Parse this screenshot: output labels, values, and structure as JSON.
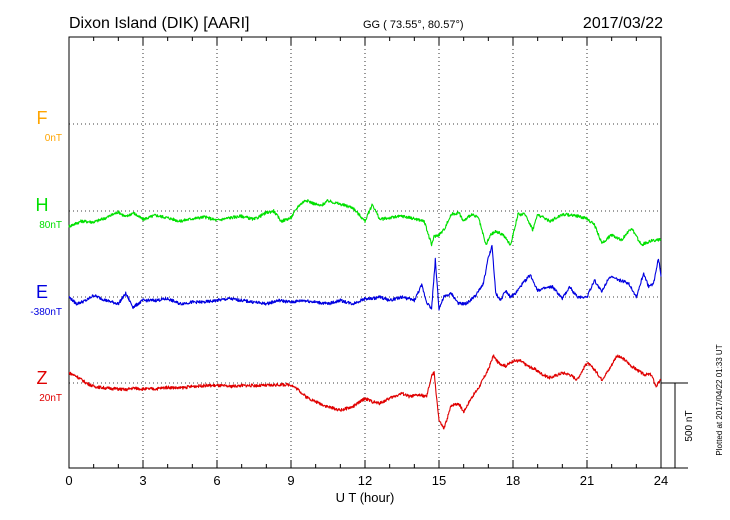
{
  "header": {
    "station": "Dixon Island (DIK)  [AARI]",
    "coords": "GG ( 73.55°,  80.57°)",
    "date": "2017/03/22"
  },
  "side_note": "Plotted at 2017/04/22 01:33 UT",
  "scale_label": "500 nT",
  "chart_data": {
    "type": "line",
    "xlabel": "U T (hour)",
    "xlim": [
      0,
      24
    ],
    "xticks": [
      "0",
      "3",
      "6",
      "9",
      "12",
      "15",
      "18",
      "21",
      "24"
    ],
    "grid": true,
    "scale_bar_nT": 500,
    "series": [
      {
        "name": "F",
        "offset": "0nT",
        "color": "#ffa500",
        "x": [],
        "y": []
      },
      {
        "name": "H",
        "offset": "80nT",
        "color": "#00e000",
        "x": [
          0,
          0.5,
          1,
          1.5,
          2,
          2.3,
          2.6,
          3,
          3.5,
          4,
          4.5,
          5,
          5.5,
          6,
          6.5,
          7,
          7.5,
          8,
          8.3,
          8.6,
          9,
          9.3,
          9.6,
          9.9,
          10.2,
          10.5,
          11,
          11.5,
          12,
          12.3,
          12.6,
          13,
          13.5,
          14,
          14.4,
          14.7,
          14.8,
          15,
          15.2,
          15.5,
          15.8,
          16,
          16.3,
          16.6,
          16.9,
          17.1,
          17.3,
          17.6,
          17.9,
          18.2,
          18.5,
          18.8,
          19,
          19.5,
          20,
          20.5,
          21,
          21.3,
          21.6,
          22,
          22.4,
          22.8,
          23.2,
          23.5,
          23.8,
          24
        ],
        "y": [
          -10,
          20,
          15,
          40,
          75,
          45,
          70,
          30,
          55,
          40,
          20,
          35,
          45,
          25,
          40,
          50,
          30,
          70,
          80,
          20,
          40,
          110,
          145,
          125,
          110,
          140,
          120,
          100,
          20,
          120,
          30,
          40,
          50,
          35,
          20,
          -120,
          -70,
          -60,
          -30,
          60,
          70,
          20,
          60,
          40,
          -120,
          -60,
          -40,
          -60,
          -120,
          60,
          60,
          -30,
          60,
          20,
          60,
          55,
          35,
          0,
          -110,
          -60,
          -90,
          -20,
          -120,
          -100,
          -90,
          -90
        ]
      },
      {
        "name": "E",
        "offset": "-380nT",
        "color": "#0000e0",
        "x": [
          0,
          0.3,
          0.7,
          1,
          1.5,
          2,
          2.3,
          2.6,
          3,
          3.5,
          4,
          4.5,
          5,
          5.5,
          6,
          6.5,
          7,
          7.5,
          8,
          8.5,
          9,
          9.5,
          10,
          10.5,
          11,
          11.5,
          12,
          12.3,
          12.6,
          13,
          13.5,
          14,
          14.3,
          14.5,
          14.7,
          14.85,
          15,
          15.2,
          15.5,
          15.8,
          16.1,
          16.5,
          16.8,
          17,
          17.15,
          17.3,
          17.5,
          17.7,
          17.9,
          18.1,
          18.4,
          18.7,
          19,
          19.3,
          19.6,
          20,
          20.3,
          20.6,
          21,
          21.3,
          21.6,
          21.9,
          22.3,
          22.7,
          23,
          23.3,
          23.5,
          23.7,
          23.9,
          24
        ],
        "y": [
          -380,
          -420,
          -400,
          -370,
          -400,
          -420,
          -360,
          -440,
          -400,
          -400,
          -390,
          -420,
          -410,
          -410,
          -400,
          -390,
          -400,
          -410,
          -420,
          -400,
          -410,
          -400,
          -410,
          -420,
          -400,
          -420,
          -390,
          -390,
          -380,
          -400,
          -380,
          -400,
          -310,
          -410,
          -450,
          -160,
          -450,
          -380,
          -360,
          -420,
          -420,
          -370,
          -300,
          -150,
          -80,
          -360,
          -400,
          -340,
          -380,
          -360,
          -300,
          -250,
          -340,
          -330,
          -320,
          -390,
          -320,
          -380,
          -380,
          -280,
          -350,
          -260,
          -280,
          -300,
          -380,
          -240,
          -320,
          -300,
          -150,
          -260
        ]
      },
      {
        "name": "Z",
        "offset": "20nT",
        "color": "#e00000",
        "x": [
          0,
          0.3,
          0.7,
          1,
          1.5,
          2,
          2.3,
          2.6,
          3,
          3.5,
          4,
          4.5,
          5,
          5.5,
          6,
          6.5,
          7,
          7.5,
          8,
          8.5,
          9,
          9.3,
          9.6,
          10,
          10.5,
          11,
          11.5,
          11.8,
          12,
          12.3,
          12.6,
          13,
          13.5,
          13.8,
          14.2,
          14.5,
          14.7,
          14.8,
          15,
          15.2,
          15.5,
          15.8,
          16,
          16.3,
          16.6,
          17,
          17.2,
          17.4,
          17.7,
          18,
          18.3,
          18.6,
          18.9,
          19.2,
          19.5,
          20,
          20.3,
          20.6,
          21,
          21.3,
          21.6,
          21.9,
          22.2,
          22.5,
          22.8,
          23,
          23.3,
          23.6,
          23.8,
          24
        ],
        "y": [
          80,
          60,
          20,
          0,
          -10,
          -15,
          -20,
          -10,
          -15,
          -15,
          -5,
          -10,
          0,
          5,
          5,
          0,
          5,
          5,
          5,
          10,
          10,
          -20,
          -60,
          -90,
          -120,
          -140,
          -120,
          -90,
          -70,
          -90,
          -100,
          -70,
          -40,
          -60,
          -50,
          -60,
          60,
          80,
          -200,
          -250,
          -110,
          -100,
          -150,
          -70,
          -10,
          100,
          180,
          140,
          120,
          150,
          150,
          120,
          100,
          70,
          50,
          80,
          70,
          40,
          140,
          100,
          40,
          100,
          180,
          160,
          120,
          100,
          70,
          70,
          0,
          40
        ]
      }
    ]
  }
}
